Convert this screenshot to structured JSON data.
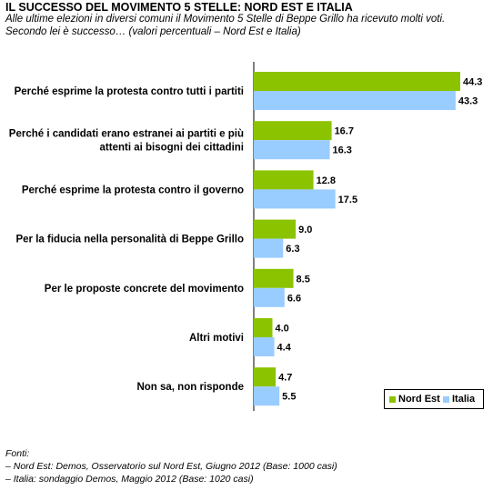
{
  "header": {
    "title": "IL SUCCESSO DEL MOVIMENTO 5 STELLE: NORD EST E ITALIA",
    "subtitle_line1": "Alle ultime elezioni in diversi comuni il Movimento 5 Stelle di Beppe Grillo ha ricevuto molti voti.",
    "subtitle_line2": "Secondo lei è successo… (valori percentuali – Nord Est e Italia)"
  },
  "footer": {
    "heading": "Fonti:",
    "line1": "– Nord Est: Demos, Osservatorio sul Nord Est, Giugno 2012 (Base: 1000 casi)",
    "line2": "– Italia: sondaggio Demos, Maggio 2012 (Base: 1020 casi)"
  },
  "chart_data": {
    "type": "bar",
    "orientation": "horizontal",
    "categories": [
      [
        "Perché esprime la protesta contro tutti i partiti"
      ],
      [
        "Perché i candidati erano estranei ai partiti e più",
        "attenti ai bisogni dei cittadini"
      ],
      [
        "Perché esprime la protesta contro il governo"
      ],
      [
        "Per la fiducia nella personalità di Beppe Grillo"
      ],
      [
        "Per le proposte concrete del movimento"
      ],
      [
        "Altri motivi"
      ],
      [
        "Non sa, non risponde"
      ]
    ],
    "series": [
      {
        "name": "Nord Est",
        "color": "#8cc300",
        "values": [
          44.3,
          16.7,
          12.8,
          9.0,
          8.5,
          4.0,
          4.7
        ],
        "labels": [
          "44.3",
          "16.7",
          "12.8",
          "9.0",
          "8.5",
          "4.0",
          "4.7"
        ]
      },
      {
        "name": "Italia",
        "color": "#99ccff",
        "values": [
          43.3,
          16.3,
          17.5,
          6.3,
          6.6,
          4.4,
          5.5
        ],
        "labels": [
          "43.3",
          "16.3",
          "17.5",
          "6.3",
          "6.6",
          "4.4",
          "5.5"
        ]
      }
    ],
    "xlim": [
      0,
      44.3
    ],
    "grid": false,
    "legend_position": "bottom-right"
  }
}
